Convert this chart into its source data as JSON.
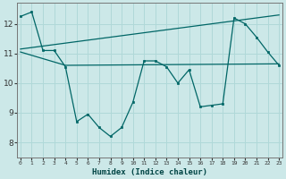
{
  "title": "",
  "xlabel": "Humidex (Indice chaleur)",
  "ylabel": "",
  "bg_color": "#cce8e8",
  "line_color": "#006666",
  "grid_color": "#b0d8d8",
  "x_ticks": [
    0,
    1,
    2,
    3,
    4,
    5,
    6,
    7,
    8,
    9,
    10,
    11,
    12,
    13,
    14,
    15,
    16,
    17,
    18,
    19,
    20,
    21,
    22,
    23
  ],
  "y_ticks": [
    8,
    9,
    10,
    11,
    12
  ],
  "ylim": [
    7.5,
    12.7
  ],
  "xlim": [
    -0.3,
    23.3
  ],
  "line1_x": [
    0,
    1,
    2,
    3,
    4,
    5,
    6,
    7,
    8,
    9,
    10,
    11,
    12,
    13,
    14,
    15,
    16,
    17,
    18,
    19,
    20,
    21,
    22,
    23
  ],
  "line1_y": [
    12.25,
    12.4,
    11.1,
    11.1,
    10.55,
    8.7,
    8.95,
    8.5,
    8.2,
    8.5,
    9.35,
    10.75,
    10.75,
    10.55,
    10.0,
    10.45,
    9.2,
    9.25,
    9.3,
    12.2,
    12.0,
    11.55,
    11.05,
    10.6
  ],
  "line2_x": [
    0,
    4,
    23
  ],
  "line2_y": [
    11.05,
    10.6,
    10.65
  ],
  "line3_x": [
    0,
    23
  ],
  "line3_y": [
    11.15,
    12.3
  ]
}
